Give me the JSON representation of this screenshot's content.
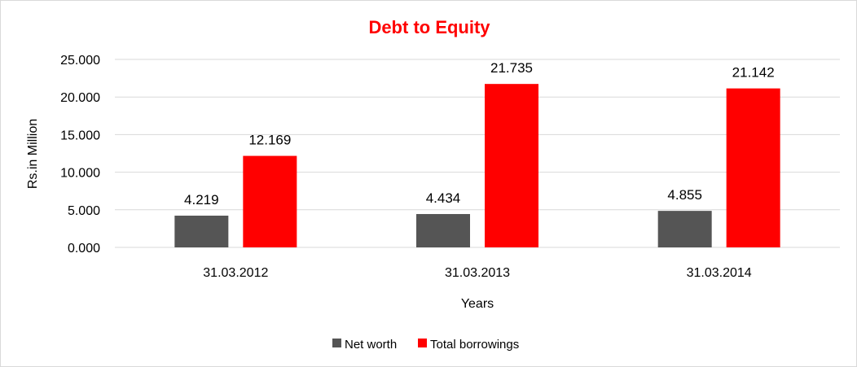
{
  "chart_data": {
    "type": "bar",
    "title": "Debt to Equity",
    "xlabel": "Years",
    "ylabel": "Rs.in Million",
    "categories": [
      "31.03.2012",
      "31.03.2013",
      "31.03.2014"
    ],
    "series": [
      {
        "name": "Net worth",
        "values": [
          4.219,
          4.434,
          4.855
        ],
        "labels": [
          "4.219",
          "4.434",
          "4.855"
        ],
        "color": "#555555"
      },
      {
        "name": "Total borrowings",
        "values": [
          12.169,
          21.735,
          21.142
        ],
        "labels": [
          "12.169",
          "21.735",
          "21.142"
        ],
        "color": "#ff0000"
      }
    ],
    "ylim": [
      0,
      25
    ],
    "yticks": [
      "0.000",
      "5.000",
      "10.000",
      "15.000",
      "20.000",
      "25.000"
    ],
    "grid": true,
    "legend": "bottom",
    "title_color": "#ff0000",
    "grid_color": "#d9d9d9"
  }
}
